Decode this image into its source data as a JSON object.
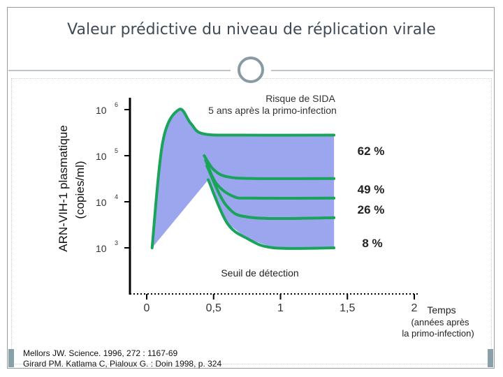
{
  "title": "Valeur prédictive du niveau de réplication virale",
  "references": [
    "Mellors JW. Science. 1996, 272 : 1167-69",
    "Girard PM. Katlama C, Pialoux G. : Doin 1998, p. 324"
  ],
  "colors": {
    "curve": "#1aa35a",
    "band_62": "#9ba6ee",
    "band_49": "#9ed7e8",
    "band_26": "#c9cce6",
    "band_8": "#b9e1e3",
    "title": "#404a57",
    "axis": "#000000"
  },
  "chart_data": {
    "type": "area",
    "title": "Risque de SIDA",
    "subtitle": "5 ans après la primo-infection",
    "ylabel": "ARN-VIH-1 plasmatique",
    "ylabel_unit": "(copies/ml)",
    "xlabel": "Temps",
    "xlabel_sub": [
      "(années après",
      "la primo-infection)"
    ],
    "y_scale": "log",
    "ylim": [
      1000,
      1000000
    ],
    "xlim": [
      0,
      2
    ],
    "y_ticks": [
      {
        "value": 1000,
        "base": "10",
        "exp": "3"
      },
      {
        "value": 10000,
        "base": "10",
        "exp": "4"
      },
      {
        "value": 100000,
        "base": "10",
        "exp": "5"
      },
      {
        "value": 1000000,
        "base": "10",
        "exp": "6"
      }
    ],
    "x_ticks": [
      {
        "value": 0,
        "label": "0"
      },
      {
        "value": 0.5,
        "label": "0,5"
      },
      {
        "value": 1,
        "label": "1"
      },
      {
        "value": 1.5,
        "label": "1,5"
      },
      {
        "value": 2,
        "label": "2"
      }
    ],
    "detection_label": "Seuil de détection",
    "series": [
      {
        "label": "62 %",
        "points": [
          [
            0.04,
            1000
          ],
          [
            0.12,
            200000
          ],
          [
            0.24,
            1000000
          ],
          [
            0.33,
            500000
          ],
          [
            0.42,
            300000
          ],
          [
            0.7,
            280000
          ],
          [
            1.4,
            280000
          ]
        ]
      },
      {
        "label": "49 %",
        "points": [
          [
            0.43,
            100000
          ],
          [
            0.5,
            50000
          ],
          [
            0.6,
            35000
          ],
          [
            0.8,
            32000
          ],
          [
            1.4,
            32000
          ]
        ]
      },
      {
        "label": "26 %",
        "points": [
          [
            0.44,
            80000
          ],
          [
            0.52,
            25000
          ],
          [
            0.65,
            13000
          ],
          [
            0.8,
            12000
          ],
          [
            1.4,
            12000
          ]
        ]
      },
      {
        "label": "8 %",
        "points": [
          [
            0.45,
            60000
          ],
          [
            0.6,
            8000
          ],
          [
            0.8,
            4500
          ],
          [
            1.4,
            4500
          ]
        ]
      },
      {
        "label": "",
        "points": [
          [
            0.46,
            30000
          ],
          [
            0.6,
            3500
          ],
          [
            0.75,
            1600
          ],
          [
            0.95,
            1000
          ],
          [
            1.4,
            1000
          ]
        ]
      }
    ]
  }
}
